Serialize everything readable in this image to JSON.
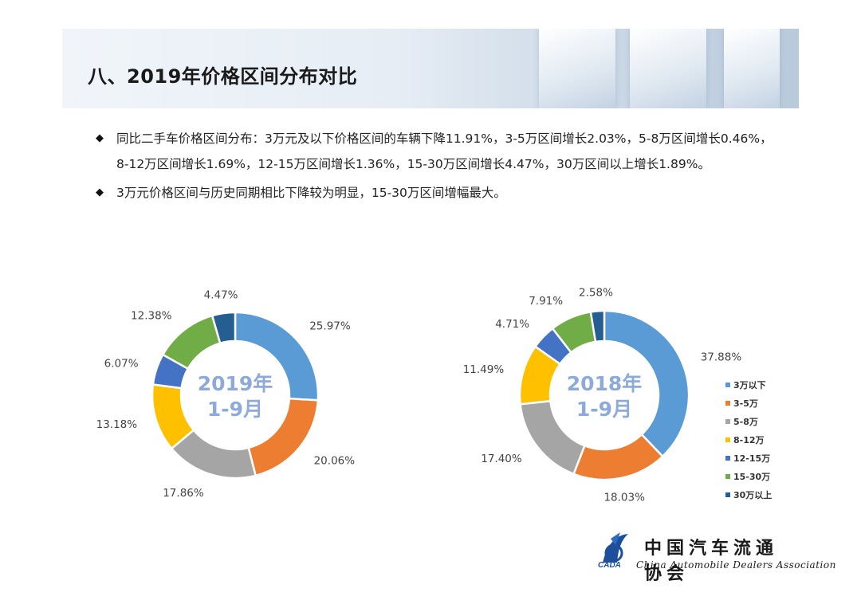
{
  "header": {
    "title": "八、2019年价格区间分布对比"
  },
  "bullets": [
    "同比二手车价格区间分布：3万元及以下价格区间的车辆下降11.91%，3-5万区间增长2.03%，5-8万区间增长0.46%，8-12万区间增长1.69%，12-15万区间增长1.36%，15-30万区间增长4.47%，30万区间以上增长1.89%。",
    "3万元价格区间与历史同期相比下降较为明显，15-30万区间增幅最大。"
  ],
  "chart_data": [
    {
      "type": "pie",
      "variant": "donut",
      "center_label": [
        "2019年",
        "1-9月"
      ],
      "categories": [
        "3万以下",
        "3-5万",
        "5-8万",
        "8-12万",
        "12-15万",
        "15-30万",
        "30万以上"
      ],
      "values": [
        25.97,
        20.06,
        17.86,
        13.18,
        6.07,
        12.38,
        4.47
      ],
      "labels": [
        "25.97%",
        "20.06%",
        "17.86%",
        "13.18%",
        "6.07%",
        "12.38%",
        "4.47%"
      ],
      "colors": [
        "#5B9BD5",
        "#ED7D31",
        "#A5A5A5",
        "#FFC000",
        "#4472C4",
        "#70AD47",
        "#255E91"
      ]
    },
    {
      "type": "pie",
      "variant": "donut",
      "center_label": [
        "2018年",
        "1-9月"
      ],
      "categories": [
        "3万以下",
        "3-5万",
        "5-8万",
        "8-12万",
        "12-15万",
        "15-30万",
        "30万以上"
      ],
      "values": [
        37.88,
        18.03,
        17.4,
        11.49,
        4.71,
        7.91,
        2.58
      ],
      "labels": [
        "37.88%",
        "18.03%",
        "17.40%",
        "11.49%",
        "4.71%",
        "7.91%",
        "2.58%"
      ],
      "colors": [
        "#5B9BD5",
        "#ED7D31",
        "#A5A5A5",
        "#FFC000",
        "#4472C4",
        "#70AD47",
        "#255E91"
      ],
      "legend": {
        "placement": "right",
        "entries": [
          "3万以下",
          "3-5万",
          "5-8万",
          "8-12万",
          "12-15万",
          "15-30万",
          "30万以上"
        ]
      }
    }
  ],
  "logo": {
    "name_cn": "中国汽车流通协会",
    "name_en": "China Automobile Dealers Association",
    "abbr": "CADA"
  },
  "colors": {
    "center_label": "#8EAAD8"
  }
}
